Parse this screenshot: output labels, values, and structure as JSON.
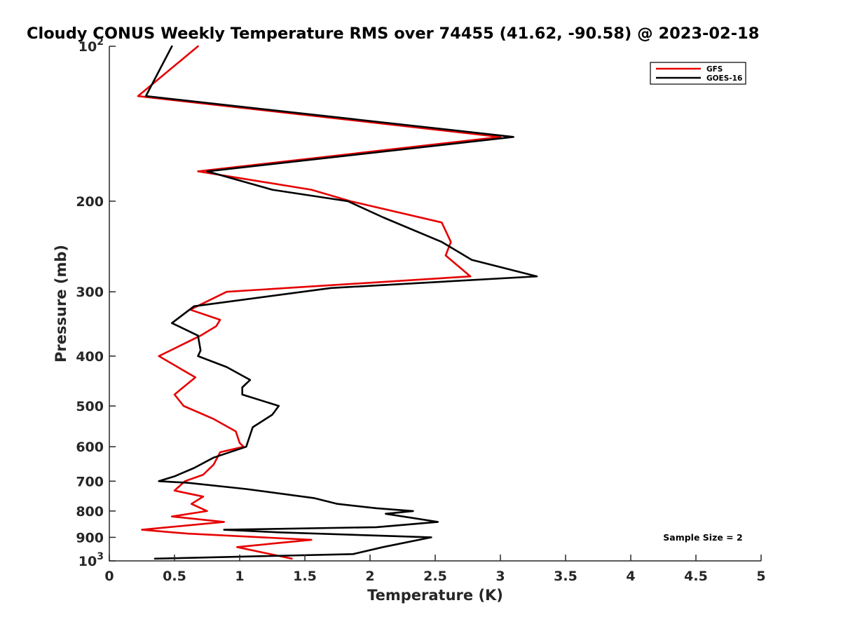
{
  "chart_data": {
    "type": "line",
    "title": "Cloudy CONUS Weekly Temperature RMS over 74455 (41.62, -90.58) @ 2023-02-18",
    "xlabel": "Temperature (K)",
    "ylabel": "Pressure (mb)",
    "xlim": [
      0,
      5
    ],
    "ylim": [
      1000,
      100
    ],
    "y_scale": "log",
    "y_reversed": true,
    "x_ticks": [
      0,
      0.5,
      1,
      1.5,
      2,
      2.5,
      3,
      3.5,
      4,
      4.5,
      5
    ],
    "x_tick_labels": [
      "0",
      "0.5",
      "1",
      "1.5",
      "2",
      "2.5",
      "3",
      "3.5",
      "4",
      "4.5",
      "5"
    ],
    "y_ticks": [
      100,
      200,
      300,
      400,
      500,
      600,
      700,
      800,
      900,
      1000
    ],
    "y_tick_labels": [
      {
        "base": "10",
        "exp": "2"
      },
      {
        "base": "200"
      },
      {
        "base": "300"
      },
      {
        "base": "400"
      },
      {
        "base": "500"
      },
      {
        "base": "600"
      },
      {
        "base": "700"
      },
      {
        "base": "800"
      },
      {
        "base": "900"
      },
      {
        "base": "10",
        "exp": "3"
      }
    ],
    "grid": false,
    "legend_position": "top-right",
    "annotation": "Sample Size = 2",
    "series": [
      {
        "name": "GFS",
        "color": "#e60000",
        "points": [
          [
            0.68,
            100
          ],
          [
            0.22,
            125
          ],
          [
            3.0,
            150
          ],
          [
            0.68,
            175
          ],
          [
            1.55,
            190
          ],
          [
            1.85,
            200
          ],
          [
            2.55,
            220
          ],
          [
            2.62,
            240
          ],
          [
            2.58,
            255
          ],
          [
            2.77,
            280
          ],
          [
            0.9,
            300
          ],
          [
            0.62,
            325
          ],
          [
            0.85,
            340
          ],
          [
            0.82,
            350
          ],
          [
            0.7,
            365
          ],
          [
            0.38,
            400
          ],
          [
            0.66,
            440
          ],
          [
            0.5,
            475
          ],
          [
            0.57,
            500
          ],
          [
            0.8,
            530
          ],
          [
            0.97,
            560
          ],
          [
            1.0,
            590
          ],
          [
            1.03,
            600
          ],
          [
            0.85,
            615
          ],
          [
            0.8,
            650
          ],
          [
            0.72,
            680
          ],
          [
            0.58,
            700
          ],
          [
            0.5,
            730
          ],
          [
            0.72,
            750
          ],
          [
            0.63,
            775
          ],
          [
            0.75,
            800
          ],
          [
            0.48,
            820
          ],
          [
            0.88,
            840
          ],
          [
            0.25,
            870
          ],
          [
            0.6,
            885
          ],
          [
            1.55,
            910
          ],
          [
            0.98,
            940
          ],
          [
            1.4,
            990
          ]
        ]
      },
      {
        "name": "GOES-16",
        "color": "#000000",
        "points": [
          [
            0.48,
            100
          ],
          [
            0.28,
            125
          ],
          [
            3.1,
            150
          ],
          [
            0.75,
            175
          ],
          [
            1.25,
            190
          ],
          [
            1.83,
            200
          ],
          [
            2.1,
            215
          ],
          [
            2.55,
            240
          ],
          [
            2.78,
            260
          ],
          [
            3.28,
            280
          ],
          [
            1.7,
            295
          ],
          [
            0.65,
            320
          ],
          [
            0.48,
            345
          ],
          [
            0.68,
            365
          ],
          [
            0.7,
            390
          ],
          [
            0.68,
            400
          ],
          [
            0.9,
            420
          ],
          [
            1.08,
            445
          ],
          [
            1.02,
            460
          ],
          [
            1.02,
            475
          ],
          [
            1.3,
            500
          ],
          [
            1.25,
            520
          ],
          [
            1.1,
            550
          ],
          [
            1.05,
            600
          ],
          [
            0.8,
            630
          ],
          [
            0.65,
            660
          ],
          [
            0.5,
            685
          ],
          [
            0.38,
            700
          ],
          [
            0.6,
            705
          ],
          [
            1.05,
            725
          ],
          [
            1.57,
            755
          ],
          [
            1.75,
            775
          ],
          [
            2.05,
            790
          ],
          [
            2.33,
            800
          ],
          [
            2.12,
            810
          ],
          [
            2.52,
            840
          ],
          [
            2.05,
            860
          ],
          [
            0.88,
            870
          ],
          [
            1.3,
            880
          ],
          [
            2.47,
            900
          ],
          [
            2.1,
            940
          ],
          [
            1.87,
            970
          ],
          [
            0.35,
            990
          ]
        ]
      }
    ]
  }
}
